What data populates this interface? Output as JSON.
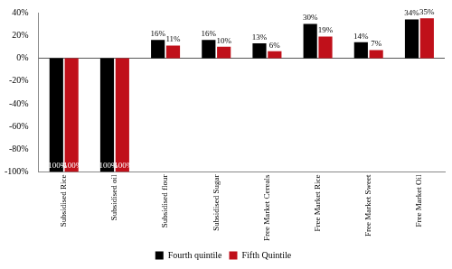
{
  "chart_data": {
    "type": "bar",
    "categories": [
      "Subsidised Rice",
      "Subsidised oil",
      "Subsidised flour",
      "Subsidised Sugar",
      "Free Market Cereals",
      "Free Market Rice",
      "Free Market Sweet",
      "Free Market Oil"
    ],
    "series": [
      {
        "name": "Fourth quintile",
        "color": "#000000",
        "values": [
          -100,
          -100,
          16,
          16,
          13,
          30,
          14,
          34
        ],
        "value_labels": [
          "-100%",
          "-100%",
          "16%",
          "16%",
          "13%",
          "30%",
          "14%",
          "34%"
        ]
      },
      {
        "name": "Fifth Quintile",
        "color": "#c0101a",
        "values": [
          -100,
          -100,
          11,
          10,
          6,
          19,
          7,
          35
        ],
        "value_labels": [
          "-100%",
          "-100%",
          "11%",
          "10%",
          "6%",
          "19%",
          "7%",
          "35%"
        ]
      }
    ],
    "ylim": [
      -100,
      40
    ],
    "yticks": [
      {
        "value": -100,
        "label": "-100%"
      },
      {
        "value": -80,
        "label": "-80%"
      },
      {
        "value": -60,
        "label": "-60%"
      },
      {
        "value": -40,
        "label": "-40%"
      },
      {
        "value": -20,
        "label": "-20%"
      },
      {
        "value": 0,
        "label": "0%"
      },
      {
        "value": 20,
        "label": "20%"
      },
      {
        "value": 40,
        "label": "40%"
      }
    ],
    "grid": false,
    "legend": "bottom",
    "data_labels": true
  }
}
